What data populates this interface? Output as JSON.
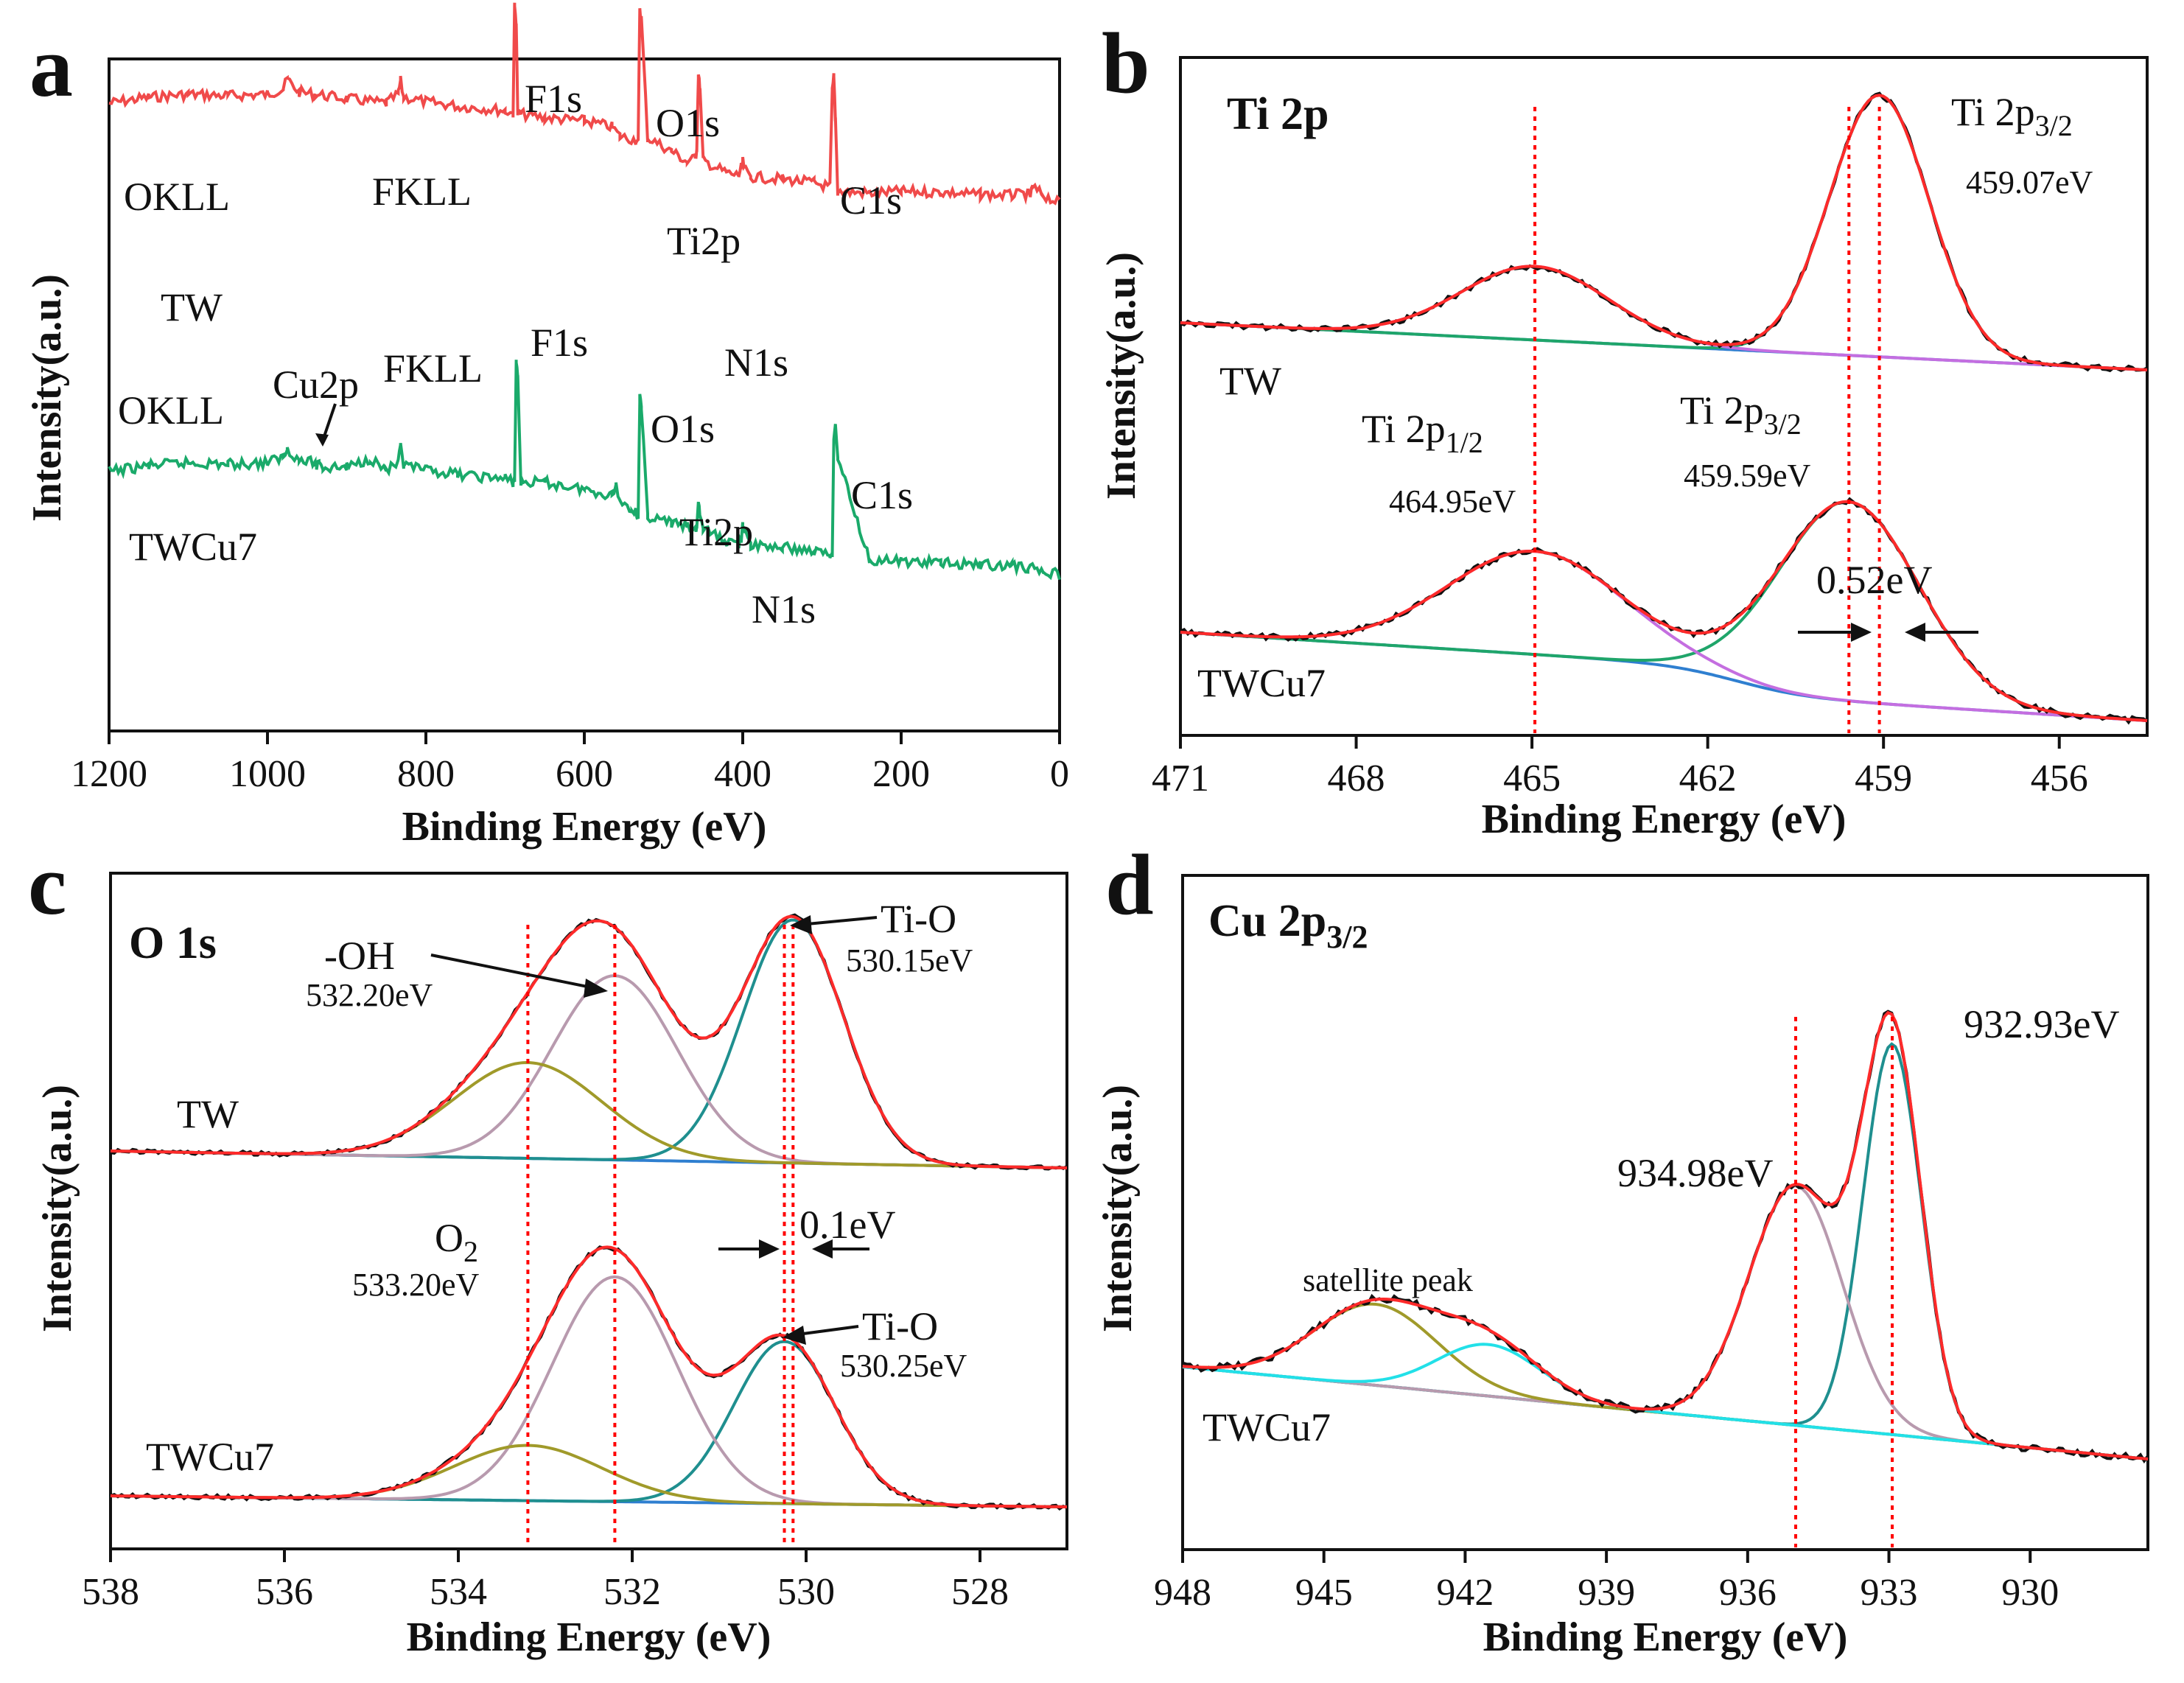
{
  "chart_data": [
    {
      "id": "a",
      "type": "line",
      "panel_label": "a",
      "xlabel": "Binding Energy (eV)",
      "ylabel": "Intensity(a.u.)",
      "xlim": [
        1200,
        0
      ],
      "xticks": [
        "1200",
        "1000",
        "800",
        "600",
        "400",
        "200",
        "0"
      ],
      "series": [
        {
          "name": "TW",
          "color": "#f04a4a",
          "x": [
            1200,
            1150,
            1100,
            1050,
            1000,
            980,
            975,
            960,
            940,
            900,
            850,
            835,
            832,
            828,
            800,
            760,
            700,
            690,
            688,
            686,
            684,
            680,
            650,
            600,
            565,
            555,
            535,
            532,
            530,
            528,
            520,
            490,
            470,
            460,
            458,
            456,
            454,
            450,
            420,
            405,
            402,
            400,
            397,
            390,
            350,
            310,
            290,
            287,
            285,
            283,
            280,
            240,
            200,
            150,
            100,
            60,
            40,
            37,
            34,
            20,
            0
          ],
          "y": [
            200,
            208,
            212,
            210,
            212,
            220,
            232,
            215,
            212,
            206,
            200,
            212,
            230,
            208,
            202,
            196,
            190,
            186,
            330,
            310,
            186,
            185,
            180,
            176,
            168,
            155,
            150,
            145,
            330,
            315,
            153,
            135,
            120,
            125,
            140,
            238,
            218,
            122,
            105,
            102,
            112,
            120,
            110,
            100,
            97,
            92,
            86,
            215,
            235,
            180,
            80,
            78,
            80,
            79,
            76,
            75,
            77,
            74,
            85,
            75,
            64
          ]
        },
        {
          "name": "TWCu7",
          "color": "#1aaa6a",
          "x": [
            1200,
            1150,
            1100,
            1050,
            1000,
            980,
            975,
            960,
            940,
            938,
            935,
            930,
            900,
            870,
            860,
            850,
            835,
            832,
            828,
            800,
            760,
            700,
            690,
            688,
            686,
            684,
            680,
            650,
            600,
            565,
            560,
            555,
            540,
            535,
            532,
            530,
            528,
            520,
            490,
            470,
            460,
            458,
            456,
            454,
            450,
            420,
            405,
            402,
            400,
            397,
            390,
            350,
            310,
            290,
            287,
            285,
            283,
            280,
            240,
            200,
            150,
            100,
            60,
            40,
            20,
            0
          ],
          "y": [
            0,
            8,
            12,
            10,
            12,
            20,
            32,
            15,
            12,
            5,
            18,
            5,
            6,
            18,
            10,
            2,
            10,
            32,
            8,
            2,
            -4,
            -10,
            -14,
            -12,
            150,
            130,
            -14,
            -15,
            -24,
            -32,
            -18,
            -40,
            -50,
            -55,
            -60,
            100,
            85,
            -60,
            -70,
            -75,
            -80,
            -75,
            -40,
            -60,
            -78,
            -95,
            -98,
            -90,
            -75,
            -85,
            -100,
            -103,
            -108,
            -112,
            -114,
            50,
            60,
            20,
            -120,
            -122,
            -124,
            -126,
            -128,
            -130,
            -135,
            -140
          ]
        }
      ],
      "annotations": {
        "tw_label": "TW",
        "twcu7_label": "TWCu7",
        "tw_peaks": {
          "OKLL": "OKLL",
          "FKLL": "FKLL",
          "F1s": "F1s",
          "O1s": "O1s",
          "Ti2p": "Ti2p",
          "C1s": "C1s",
          "N1s": "N1s"
        },
        "twcu7_peaks": {
          "OKLL": "OKLL",
          "Cu2p": "Cu2p",
          "FKLL": "FKLL",
          "F1s": "F1s",
          "O1s": "O1s",
          "Ti2p": "Ti2p",
          "C1s": "C1s",
          "N1s": "N1s"
        }
      }
    },
    {
      "id": "b",
      "type": "line",
      "panel_label": "b",
      "title": "Ti 2p",
      "xlabel": "Binding Energy (eV)",
      "ylabel": "Intensity(a.u.)",
      "xlim": [
        471,
        454.5
      ],
      "xticks": [
        "471",
        "468",
        "465",
        "462",
        "459",
        "456"
      ],
      "samples": [
        {
          "name": "TW",
          "peaks": [
            {
              "label": "Ti 2p3/2",
              "center": 459.07,
              "value_label": "459.07eV"
            },
            {
              "label": "Ti 2p1/2",
              "center": 464.95
            }
          ]
        },
        {
          "name": "TWCu7",
          "peaks": [
            {
              "label": "Ti 2p1/2",
              "center": 464.95,
              "value_label": "464.95eV"
            },
            {
              "label": "Ti 2p3/2",
              "center": 459.59,
              "value_label": "459.59eV"
            }
          ]
        }
      ],
      "shift_label": "0.52eV",
      "reference_lines_eV": [
        464.95,
        459.59,
        459.07
      ],
      "legend_colors": {
        "raw": "#111111",
        "fit": "#ff2a2a",
        "component_3_2": "#1fa56a",
        "component_1_2": "#c46ee0",
        "background": "#2f7fd0"
      }
    },
    {
      "id": "c",
      "type": "line",
      "panel_label": "c",
      "title": "O 1s",
      "xlabel": "Binding Energy (eV)",
      "ylabel": "Intensity(a.u.)",
      "xlim": [
        538,
        527
      ],
      "xticks": [
        "538",
        "536",
        "534",
        "532",
        "530",
        "528"
      ],
      "samples": [
        {
          "name": "TW",
          "peaks": [
            {
              "label": "Ti-O",
              "center": 530.15,
              "value_label": "530.15eV"
            },
            {
              "label": "-OH",
              "center": 532.2,
              "value_label": "532.20eV"
            },
            {
              "label": "O2",
              "center": 533.2
            }
          ]
        },
        {
          "name": "TWCu7",
          "peaks": [
            {
              "label": "Ti-O",
              "center": 530.25,
              "value_label": "530.25eV"
            },
            {
              "label": "-OH",
              "center": 532.2
            },
            {
              "label": "O2",
              "center": 533.2,
              "value_label": "533.20eV"
            }
          ]
        }
      ],
      "shift_label": "0.1eV",
      "reference_lines_eV": [
        533.2,
        532.2,
        530.25,
        530.15
      ],
      "legend_colors": {
        "raw": "#111111",
        "fit": "#ff2a2a",
        "Ti-O": "#1f8f8f",
        "-OH": "#b89aae",
        "O2": "#a09a2a",
        "background": "#2f7fd0"
      }
    },
    {
      "id": "d",
      "type": "line",
      "panel_label": "d",
      "title": "Cu 2p3/2",
      "xlabel": "Binding Energy (eV)",
      "ylabel": "Intensity(a.u.)",
      "xlim": [
        948,
        927.5
      ],
      "xticks": [
        "948",
        "945",
        "942",
        "939",
        "936",
        "933",
        "930"
      ],
      "samples": [
        {
          "name": "TWCu7",
          "peaks": [
            {
              "label": "932.93eV",
              "center": 932.93
            },
            {
              "label": "934.98eV",
              "center": 934.98
            },
            {
              "label": "satellite peak",
              "center": 943.8
            },
            {
              "label": "satellite peak",
              "center": 941.5
            }
          ]
        }
      ],
      "reference_lines_eV": [
        934.98,
        932.93
      ],
      "legend_colors": {
        "raw": "#111111",
        "fit": "#ff2a2a",
        "main": "#1f8f8f",
        "shoulder": "#b89aae",
        "sat1": "#a09a2a",
        "sat2": "#22e0e8",
        "background": "#22e0e8"
      }
    }
  ],
  "labels": {
    "a": {
      "letter": "a",
      "okll_tw": "OKLL",
      "fkll_tw": "FKLL",
      "f1s_tw": "F1s",
      "o1s_tw": "O1s",
      "ti2p_tw": "Ti2p",
      "c1s_tw": "C1s",
      "n1s_tw": "N1s",
      "tw": "TW",
      "okll_cu": "OKLL",
      "cu2p": "Cu2p",
      "fkll_cu": "FKLL",
      "f1s_cu": "F1s",
      "o1s_cu": "O1s",
      "ti2p_cu": "Ti2p",
      "c1s_cu": "C1s",
      "n1s_cu": "N1s",
      "twcu7": "TWCu7"
    },
    "b": {
      "letter": "b",
      "title": "Ti 2p",
      "tw": "TW",
      "twcu7": "TWCu7",
      "p32_main": "Ti 2p",
      "p32_sub": "3/2",
      "p32_val": "459.07eV",
      "p12_main": "Ti 2p",
      "p12_sub": "1/2",
      "p12_val": "464.95eV",
      "p32b_main": "Ti 2p",
      "p32b_sub": "3/2",
      "p32b_val": "459.59eV",
      "shift": "0.52eV"
    },
    "c": {
      "letter": "c",
      "title": "O 1s",
      "oh": "-OH",
      "oh_val": "532.20eV",
      "tio1": "Ti-O",
      "tio1_val": "530.15eV",
      "tw": "TW",
      "o2_main": "O",
      "o2_sub": "2",
      "o2_val": "533.20eV",
      "shift": "0.1eV",
      "tio2": "Ti-O",
      "tio2_val": "530.25eV",
      "twcu7": "TWCu7"
    },
    "d": {
      "letter": "d",
      "title_main": "Cu 2p",
      "title_sub": "3/2",
      "v1": "932.93eV",
      "v2": "934.98eV",
      "sat": "satellite peak",
      "twcu7": "TWCu7"
    }
  },
  "axis_titles": {
    "x": "Binding Energy (eV)",
    "y": "Intensity(a.u.)"
  }
}
